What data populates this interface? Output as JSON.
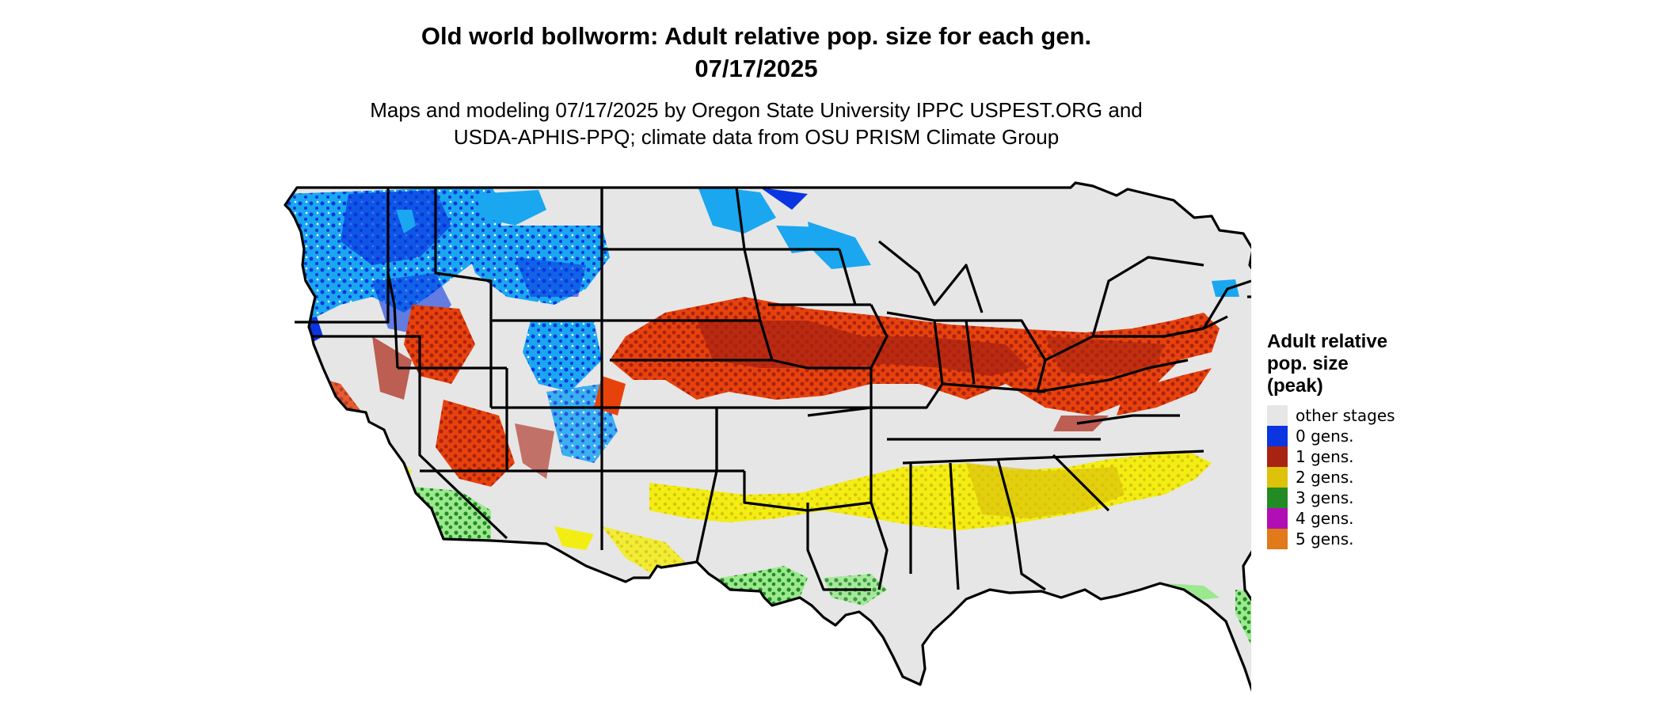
{
  "title": {
    "line1": "Old world bollworm: Adult relative pop. size for each gen.",
    "line2": "07/17/2025"
  },
  "subtitle": {
    "line1": "Maps and modeling 07/17/2025 by Oregon State University IPPC USPEST.ORG and",
    "line2": "USDA-APHIS-PPQ; climate data from OSU PRISM Climate Group"
  },
  "legend": {
    "title_lines": [
      "Adult relative",
      "pop. size",
      "(peak)"
    ],
    "items": [
      {
        "label": "other stages",
        "color": "#e6e6e6"
      },
      {
        "label": "0 gens.",
        "color": "#0a35e0"
      },
      {
        "label": "1 gens.",
        "color": "#a92312"
      },
      {
        "label": "2 gens.",
        "color": "#dcc20a"
      },
      {
        "label": "3 gens.",
        "color": "#238b23"
      },
      {
        "label": "4 gens.",
        "color": "#b10fb5"
      },
      {
        "label": "5 gens.",
        "color": "#e07a1a"
      }
    ]
  },
  "map": {
    "colors": {
      "background": "#e6e6e6",
      "zero_dark": "#0a35e0",
      "zero_light": "#1aa7f0",
      "one_dark": "#a92312",
      "one_light": "#e8420c",
      "two_yellow": "#f2ee14",
      "three_dark": "#238b23",
      "three_light": "#9be88f",
      "four": "#b10fb5",
      "border": "#000000"
    }
  }
}
